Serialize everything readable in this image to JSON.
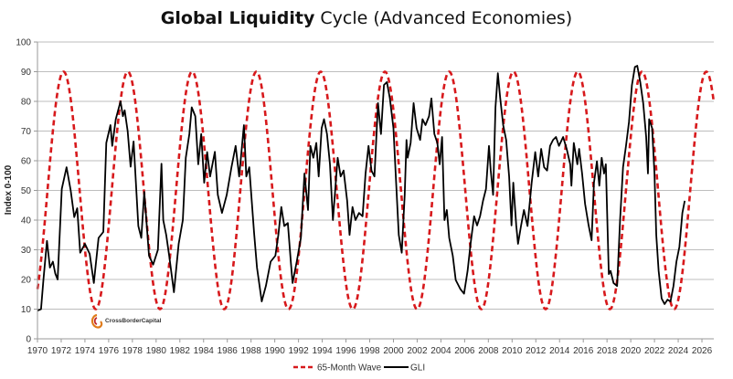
{
  "chart_data": {
    "type": "line",
    "title_bold": "Global Liquidity",
    "title_rest": " Cycle (Advanced Economies)",
    "xlabel": "",
    "ylabel": "Index 0-100",
    "xlim": [
      1970,
      2027
    ],
    "ylim": [
      0,
      100
    ],
    "x_ticks": [
      1970,
      1972,
      1974,
      1976,
      1978,
      1980,
      1982,
      1984,
      1986,
      1988,
      1990,
      1992,
      1994,
      1996,
      1998,
      2000,
      2002,
      2004,
      2006,
      2008,
      2010,
      2012,
      2014,
      2016,
      2018,
      2020,
      2022,
      2024,
      2026
    ],
    "y_ticks": [
      0,
      10,
      20,
      30,
      40,
      50,
      60,
      70,
      80,
      90,
      100
    ],
    "grid": true,
    "legend_position": "bottom",
    "source_logo": "CrossBorderCapital",
    "series": [
      {
        "name": "65-Month Wave",
        "color": "#d7191c",
        "style": "dashed",
        "function": "sine",
        "period_months": 65,
        "min": 10,
        "max": 90,
        "first_peak_year": 1972.2,
        "x_range": [
          1970,
          2027
        ]
      },
      {
        "name": "GLI",
        "color": "#000000",
        "style": "solid",
        "points": [
          [
            1970.0,
            9.5
          ],
          [
            1970.3,
            10
          ],
          [
            1970.5,
            19.8
          ],
          [
            1970.8,
            33
          ],
          [
            1971.05,
            24
          ],
          [
            1971.3,
            26
          ],
          [
            1971.5,
            22
          ],
          [
            1971.7,
            20
          ],
          [
            1972.05,
            50.5
          ],
          [
            1972.45,
            57.8
          ],
          [
            1972.8,
            50
          ],
          [
            1973.1,
            41
          ],
          [
            1973.35,
            44
          ],
          [
            1973.6,
            29
          ],
          [
            1974.0,
            32
          ],
          [
            1974.4,
            28.6
          ],
          [
            1974.75,
            18.8
          ],
          [
            1975.15,
            34
          ],
          [
            1975.55,
            36
          ],
          [
            1975.8,
            66
          ],
          [
            1976.15,
            72
          ],
          [
            1976.3,
            65
          ],
          [
            1976.6,
            74
          ],
          [
            1977.0,
            80
          ],
          [
            1977.2,
            75
          ],
          [
            1977.35,
            77
          ],
          [
            1977.6,
            70
          ],
          [
            1977.85,
            58
          ],
          [
            1978.1,
            66.5
          ],
          [
            1978.5,
            38
          ],
          [
            1978.75,
            34
          ],
          [
            1979.0,
            49.5
          ],
          [
            1979.4,
            28
          ],
          [
            1979.75,
            25
          ],
          [
            1980.15,
            30
          ],
          [
            1980.45,
            59
          ],
          [
            1980.6,
            40
          ],
          [
            1980.85,
            35
          ],
          [
            1981.1,
            28
          ],
          [
            1981.5,
            15.7
          ],
          [
            1981.9,
            32
          ],
          [
            1982.25,
            40
          ],
          [
            1982.5,
            61
          ],
          [
            1982.8,
            69
          ],
          [
            1983.0,
            78
          ],
          [
            1983.3,
            75
          ],
          [
            1983.55,
            58.8
          ],
          [
            1983.8,
            69
          ],
          [
            1984.05,
            52.6
          ],
          [
            1984.3,
            62.9
          ],
          [
            1984.55,
            54.7
          ],
          [
            1984.95,
            63
          ],
          [
            1985.2,
            48.5
          ],
          [
            1985.55,
            42.4
          ],
          [
            1985.95,
            48.5
          ],
          [
            1986.35,
            57.8
          ],
          [
            1986.7,
            65
          ],
          [
            1987.0,
            54.7
          ],
          [
            1987.4,
            72
          ],
          [
            1987.6,
            54.7
          ],
          [
            1987.85,
            57.8
          ],
          [
            1988.25,
            36
          ],
          [
            1988.5,
            24
          ],
          [
            1988.9,
            12.6
          ],
          [
            1989.25,
            17.8
          ],
          [
            1989.65,
            26
          ],
          [
            1990.05,
            28
          ],
          [
            1990.3,
            35
          ],
          [
            1990.55,
            44.4
          ],
          [
            1990.8,
            38
          ],
          [
            1991.1,
            39
          ],
          [
            1991.35,
            26
          ],
          [
            1991.5,
            18.8
          ],
          [
            1991.85,
            26
          ],
          [
            1992.2,
            34
          ],
          [
            1992.5,
            55.7
          ],
          [
            1992.8,
            43.4
          ],
          [
            1993.0,
            65
          ],
          [
            1993.25,
            61
          ],
          [
            1993.5,
            66
          ],
          [
            1993.7,
            54.7
          ],
          [
            1993.95,
            71
          ],
          [
            1994.15,
            74
          ],
          [
            1994.4,
            69
          ],
          [
            1994.65,
            58.8
          ],
          [
            1994.9,
            40
          ],
          [
            1995.3,
            61
          ],
          [
            1995.55,
            54.7
          ],
          [
            1995.8,
            56.7
          ],
          [
            1996.1,
            46.5
          ],
          [
            1996.3,
            35
          ],
          [
            1996.55,
            44.4
          ],
          [
            1996.8,
            40
          ],
          [
            1997.1,
            42.4
          ],
          [
            1997.4,
            41.3
          ],
          [
            1997.65,
            55.7
          ],
          [
            1997.9,
            65
          ],
          [
            1998.15,
            56.7
          ],
          [
            1998.4,
            54.7
          ],
          [
            1998.7,
            79.4
          ],
          [
            1998.95,
            69
          ],
          [
            1999.2,
            85.5
          ],
          [
            1999.45,
            86.5
          ],
          [
            1999.7,
            81
          ],
          [
            2000.0,
            71
          ],
          [
            2000.2,
            54.7
          ],
          [
            2000.45,
            35
          ],
          [
            2000.7,
            29
          ],
          [
            2000.95,
            48.5
          ],
          [
            2001.1,
            67
          ],
          [
            2001.2,
            61
          ],
          [
            2001.45,
            66
          ],
          [
            2001.7,
            79.4
          ],
          [
            2001.95,
            71
          ],
          [
            2002.25,
            67
          ],
          [
            2002.45,
            74
          ],
          [
            2002.7,
            72
          ],
          [
            2003.0,
            75
          ],
          [
            2003.2,
            81
          ],
          [
            2003.45,
            69
          ],
          [
            2003.7,
            66
          ],
          [
            2003.9,
            58.8
          ],
          [
            2004.1,
            68
          ],
          [
            2004.3,
            40
          ],
          [
            2004.5,
            43.4
          ],
          [
            2004.7,
            34
          ],
          [
            2005.0,
            28
          ],
          [
            2005.25,
            19.8
          ],
          [
            2005.65,
            16.7
          ],
          [
            2005.95,
            15.2
          ],
          [
            2006.25,
            22.9
          ],
          [
            2006.5,
            32
          ],
          [
            2006.8,
            41.3
          ],
          [
            2007.05,
            38.2
          ],
          [
            2007.3,
            41.3
          ],
          [
            2007.55,
            46.5
          ],
          [
            2007.8,
            50.5
          ],
          [
            2008.05,
            65
          ],
          [
            2008.2,
            56.7
          ],
          [
            2008.4,
            48.5
          ],
          [
            2008.6,
            78
          ],
          [
            2008.8,
            89.5
          ],
          [
            2009.0,
            81
          ],
          [
            2009.25,
            72
          ],
          [
            2009.5,
            67
          ],
          [
            2009.75,
            54.7
          ],
          [
            2009.95,
            38.2
          ],
          [
            2010.1,
            52.6
          ],
          [
            2010.35,
            38.2
          ],
          [
            2010.5,
            32
          ],
          [
            2010.75,
            38
          ],
          [
            2011.0,
            43.4
          ],
          [
            2011.3,
            38
          ],
          [
            2011.65,
            52.6
          ],
          [
            2011.95,
            62.9
          ],
          [
            2012.2,
            54.7
          ],
          [
            2012.45,
            64
          ],
          [
            2012.7,
            57.8
          ],
          [
            2012.95,
            56.7
          ],
          [
            2013.2,
            65
          ],
          [
            2013.45,
            67
          ],
          [
            2013.7,
            68
          ],
          [
            2013.95,
            65
          ],
          [
            2014.3,
            68
          ],
          [
            2014.6,
            64
          ],
          [
            2014.9,
            58.8
          ],
          [
            2015.0,
            51.6
          ],
          [
            2015.2,
            66
          ],
          [
            2015.5,
            58.8
          ],
          [
            2015.65,
            64
          ],
          [
            2015.9,
            55.7
          ],
          [
            2016.15,
            45.5
          ],
          [
            2016.45,
            38.2
          ],
          [
            2016.7,
            33.2
          ],
          [
            2016.9,
            52.6
          ],
          [
            2017.15,
            59.8
          ],
          [
            2017.35,
            51.6
          ],
          [
            2017.55,
            61
          ],
          [
            2017.75,
            55.7
          ],
          [
            2017.9,
            58.8
          ],
          [
            2018.15,
            21.8
          ],
          [
            2018.3,
            22.9
          ],
          [
            2018.55,
            18.8
          ],
          [
            2018.85,
            17.8
          ],
          [
            2019.1,
            40
          ],
          [
            2019.35,
            57.8
          ],
          [
            2019.6,
            65
          ],
          [
            2019.85,
            73
          ],
          [
            2020.1,
            85.5
          ],
          [
            2020.35,
            91.6
          ],
          [
            2020.55,
            92
          ],
          [
            2020.8,
            86.5
          ],
          [
            2021.05,
            79.4
          ],
          [
            2021.3,
            68
          ],
          [
            2021.45,
            55.7
          ],
          [
            2021.55,
            74
          ],
          [
            2021.8,
            71
          ],
          [
            2022.0,
            55.7
          ],
          [
            2022.15,
            35
          ],
          [
            2022.35,
            22.9
          ],
          [
            2022.6,
            13.6
          ],
          [
            2022.85,
            11.7
          ],
          [
            2023.1,
            13.2
          ],
          [
            2023.35,
            12.6
          ],
          [
            2023.6,
            17.8
          ],
          [
            2023.85,
            26
          ],
          [
            2024.1,
            31
          ],
          [
            2024.35,
            42.4
          ],
          [
            2024.55,
            46.5
          ]
        ]
      }
    ]
  }
}
